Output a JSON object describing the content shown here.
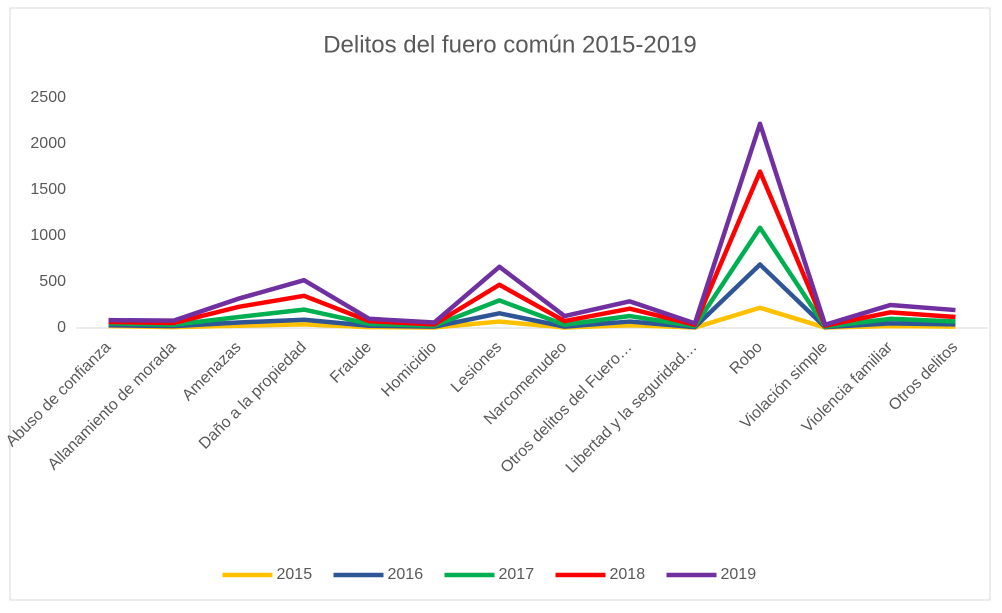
{
  "chart_data": {
    "type": "line",
    "title": "Delitos del fuero común 2015-2019",
    "categories": [
      "Abuso de confianza",
      "Allanamiento de morada",
      "Amenazas",
      "Daño a la propiedad",
      "Fraude",
      "Homicidio",
      "Lesiones",
      "Narcomenudeo",
      "Otros delitos del Fuero…",
      "Libertad y la seguridad…",
      "Robo",
      "Violación simple",
      "Violencia familiar",
      "Otros delitos"
    ],
    "series": [
      {
        "name": "2015",
        "color": "#ffc000",
        "values": [
          20,
          10,
          25,
          40,
          10,
          5,
          70,
          5,
          30,
          5,
          220,
          5,
          20,
          15
        ]
      },
      {
        "name": "2016",
        "color": "#2f5597",
        "values": [
          30,
          20,
          60,
          90,
          25,
          15,
          160,
          15,
          70,
          10,
          690,
          10,
          50,
          40
        ]
      },
      {
        "name": "2017",
        "color": "#00b050",
        "values": [
          50,
          35,
          120,
          200,
          45,
          25,
          300,
          35,
          130,
          20,
          1090,
          15,
          100,
          70
        ]
      },
      {
        "name": "2018",
        "color": "#ff0000",
        "values": [
          65,
          55,
          230,
          350,
          75,
          40,
          470,
          75,
          210,
          35,
          1700,
          25,
          170,
          120
        ]
      },
      {
        "name": "2019",
        "color": "#7030a0",
        "values": [
          85,
          80,
          320,
          520,
          100,
          60,
          665,
          130,
          290,
          50,
          2220,
          35,
          250,
          195
        ]
      }
    ],
    "ylim": [
      0,
      2500
    ],
    "yticks": [
      0,
      500,
      1000,
      1500,
      2000,
      2500
    ],
    "grid": false,
    "legend": "bottom"
  }
}
